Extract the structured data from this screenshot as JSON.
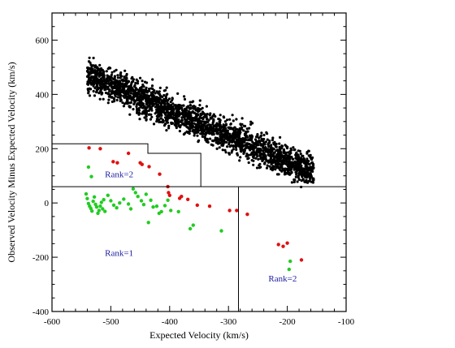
{
  "chart_data": {
    "type": "scatter",
    "title": "",
    "xlabel": "Expected Velocity (km/s)",
    "ylabel": "Observed Velocity Minus Expected Velocity (km/s)",
    "xlim": [
      -600,
      -100
    ],
    "ylim": [
      -400,
      700
    ],
    "x_ticks": [
      -600,
      -500,
      -400,
      -300,
      -200,
      -100
    ],
    "y_ticks": [
      -400,
      -200,
      0,
      200,
      400,
      600
    ],
    "colors": {
      "black": "#000000",
      "red": "#e01010",
      "green": "#22cc22",
      "annotation": "#1a1aa0"
    },
    "bulk_band": {
      "x_range": [
        -540,
        -155
      ],
      "mean_at_start": 470,
      "mean_at_end": 115,
      "spread": 55,
      "approx_count": 2400
    },
    "series": [
      {
        "color": "red",
        "points": [
          [
            -537,
            203
          ],
          [
            -518,
            200
          ],
          [
            -496,
            152
          ],
          [
            -489,
            148
          ],
          [
            -470,
            183
          ],
          [
            -450,
            148
          ],
          [
            -447,
            142
          ],
          [
            -435,
            134
          ],
          [
            -417,
            106
          ],
          [
            -403,
            60
          ],
          [
            -402,
            38
          ],
          [
            -400,
            28
          ],
          [
            -383,
            17
          ],
          [
            -380,
            24
          ],
          [
            -369,
            13
          ],
          [
            -353,
            -8
          ],
          [
            -332,
            -12
          ],
          [
            -298,
            -28
          ],
          [
            -286,
            -28
          ],
          [
            -268,
            -42
          ],
          [
            -215,
            -153
          ],
          [
            -207,
            -160
          ],
          [
            -200,
            -148
          ],
          [
            -176,
            -210
          ]
        ]
      },
      {
        "color": "green",
        "points": [
          [
            -538,
            132
          ],
          [
            -533,
            97
          ],
          [
            -542,
            33
          ],
          [
            -540,
            16
          ],
          [
            -538,
            -2
          ],
          [
            -536,
            -12
          ],
          [
            -534,
            -20
          ],
          [
            -532,
            -30
          ],
          [
            -530,
            6
          ],
          [
            -528,
            22
          ],
          [
            -526,
            -5
          ],
          [
            -524,
            -15
          ],
          [
            -522,
            -38
          ],
          [
            -520,
            -28
          ],
          [
            -518,
            -12
          ],
          [
            -516,
            2
          ],
          [
            -514,
            -22
          ],
          [
            -512,
            12
          ],
          [
            -510,
            -31
          ],
          [
            -505,
            28
          ],
          [
            -500,
            8
          ],
          [
            -495,
            -8
          ],
          [
            -490,
            -18
          ],
          [
            -485,
            0
          ],
          [
            -478,
            14
          ],
          [
            -470,
            -4
          ],
          [
            -466,
            -22
          ],
          [
            -462,
            52
          ],
          [
            -458,
            38
          ],
          [
            -454,
            24
          ],
          [
            -448,
            8
          ],
          [
            -444,
            -6
          ],
          [
            -440,
            32
          ],
          [
            -436,
            -72
          ],
          [
            -432,
            10
          ],
          [
            -428,
            -15
          ],
          [
            -422,
            -12
          ],
          [
            -418,
            -38
          ],
          [
            -414,
            -32
          ],
          [
            -408,
            -10
          ],
          [
            -403,
            10
          ],
          [
            -398,
            -28
          ],
          [
            -385,
            -32
          ],
          [
            -365,
            -95
          ],
          [
            -360,
            -82
          ],
          [
            -312,
            -103
          ],
          [
            -195,
            -215
          ],
          [
            -197,
            -245
          ]
        ]
      }
    ],
    "dividers": {
      "rank_cutoff_y": 60,
      "rank_cutoff_x": -283,
      "staircase": [
        [
          -600,
          218
        ],
        [
          -437,
          218
        ],
        [
          -437,
          183
        ],
        [
          -347,
          183
        ],
        [
          -347,
          60
        ]
      ]
    },
    "annotations": [
      {
        "text": "Rank=2",
        "x": -510,
        "y": 95
      },
      {
        "text": "Rank=1",
        "x": -510,
        "y": -195
      },
      {
        "text": "Rank=2",
        "x": -232,
        "y": -290
      }
    ],
    "grid": false,
    "legend": "none"
  }
}
